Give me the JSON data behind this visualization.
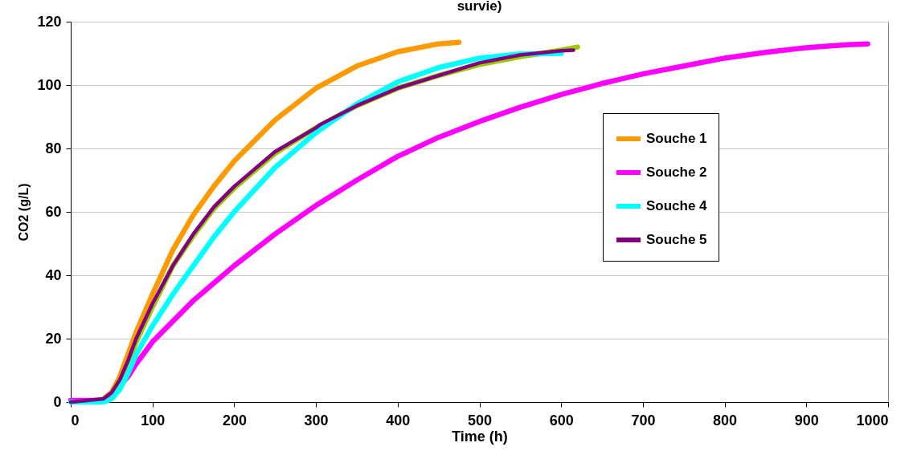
{
  "chart_data": {
    "type": "line",
    "title": "survie)",
    "xlabel": "Time (h)",
    "ylabel": "CO2 (g/L)",
    "xlim": [
      0,
      1000
    ],
    "xticks": [
      0,
      100,
      200,
      300,
      400,
      500,
      600,
      700,
      800,
      900,
      1000
    ],
    "ylim": [
      0,
      120
    ],
    "yticks": [
      0,
      20,
      40,
      60,
      80,
      100,
      120
    ],
    "grid": "y",
    "legend": "right",
    "series": [
      {
        "name": "Souche 1",
        "color": "#ff9900",
        "x": [
          40,
          50,
          60,
          70,
          80,
          100,
          125,
          150,
          175,
          200,
          250,
          300,
          350,
          400,
          450,
          475
        ],
        "values": [
          1,
          3,
          8,
          15,
          22,
          34,
          48,
          59,
          68,
          76,
          89,
          99,
          106,
          110.5,
          113,
          113.5
        ]
      },
      {
        "name": "Souche 2",
        "color": "#ff00ff",
        "x": [
          0,
          20,
          40,
          50,
          60,
          70,
          80,
          100,
          150,
          200,
          250,
          300,
          350,
          400,
          450,
          500,
          550,
          600,
          650,
          700,
          750,
          800,
          850,
          900,
          950,
          975
        ],
        "values": [
          0.5,
          0.5,
          0.5,
          2,
          5,
          8,
          12,
          19,
          32,
          43,
          53,
          62,
          70,
          77.5,
          83.5,
          88.5,
          93,
          97,
          100.5,
          103.5,
          106,
          108.5,
          110.3,
          111.8,
          112.7,
          113
        ]
      },
      {
        "color": "#99cc00",
        "x": [
          50,
          60,
          70,
          80,
          100,
          125,
          150,
          175,
          200,
          250,
          300,
          350,
          400,
          450,
          500,
          550,
          600,
          620
        ],
        "values": [
          2.5,
          6.5,
          12,
          19,
          30,
          43,
          52.5,
          61,
          67.5,
          78.5,
          86.5,
          93.5,
          99,
          103,
          106.5,
          109,
          111,
          112
        ]
      },
      {
        "name": "Souche 4",
        "color": "#00ffff",
        "x": [
          0,
          20,
          40,
          50,
          60,
          70,
          80,
          100,
          125,
          150,
          175,
          200,
          250,
          300,
          350,
          400,
          450,
          500,
          550,
          600
        ],
        "values": [
          0,
          0,
          0,
          1,
          4,
          9,
          15,
          24,
          34,
          43,
          52,
          60,
          74,
          85,
          94,
          101,
          105.5,
          108.5,
          109.8,
          110
        ]
      },
      {
        "name": "Souche 5",
        "color": "#800080",
        "x": [
          0,
          20,
          40,
          50,
          60,
          70,
          80,
          100,
          125,
          150,
          175,
          200,
          250,
          300,
          305,
          350,
          400,
          450,
          500,
          550,
          600,
          615
        ],
        "values": [
          0,
          0.5,
          1,
          3,
          7,
          13,
          20,
          31,
          43,
          53,
          61.5,
          68,
          79,
          86.5,
          87.5,
          93.5,
          99,
          103,
          107,
          109.5,
          110.8,
          111
        ]
      }
    ]
  }
}
